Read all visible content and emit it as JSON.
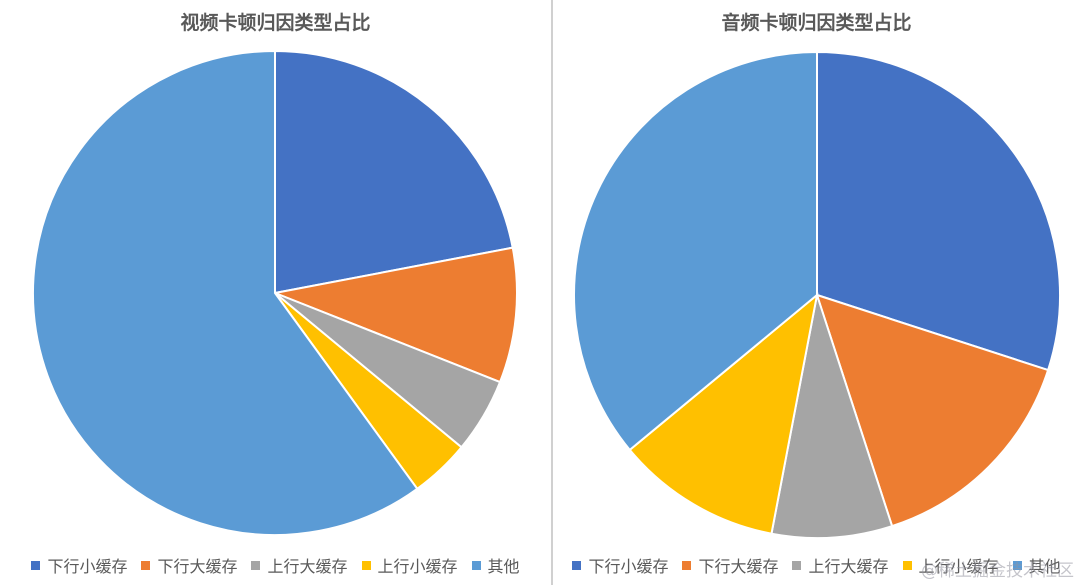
{
  "chart_data": [
    {
      "type": "pie",
      "title": "视频卡顿归因类型占比",
      "categories": [
        "下行小缓存",
        "下行大缓存",
        "上行大缓存",
        "上行小缓存",
        "其他"
      ],
      "values": [
        22,
        9,
        5,
        4,
        60
      ],
      "colors": [
        "#4472C4",
        "#ED7D31",
        "#A5A5A5",
        "#FFC000",
        "#5B9BD5"
      ],
      "legend": "bottom"
    },
    {
      "type": "pie",
      "title": "音频卡顿归因类型占比",
      "categories": [
        "下行小缓存",
        "下行大缓存",
        "上行大缓存",
        "上行小缓存",
        "其他"
      ],
      "values": [
        30,
        15,
        8,
        11,
        36
      ],
      "colors": [
        "#4472C4",
        "#ED7D31",
        "#A5A5A5",
        "#FFC000",
        "#5B9BD5"
      ],
      "legend": "bottom"
    }
  ],
  "watermark": "@稀土掘金技术社区"
}
